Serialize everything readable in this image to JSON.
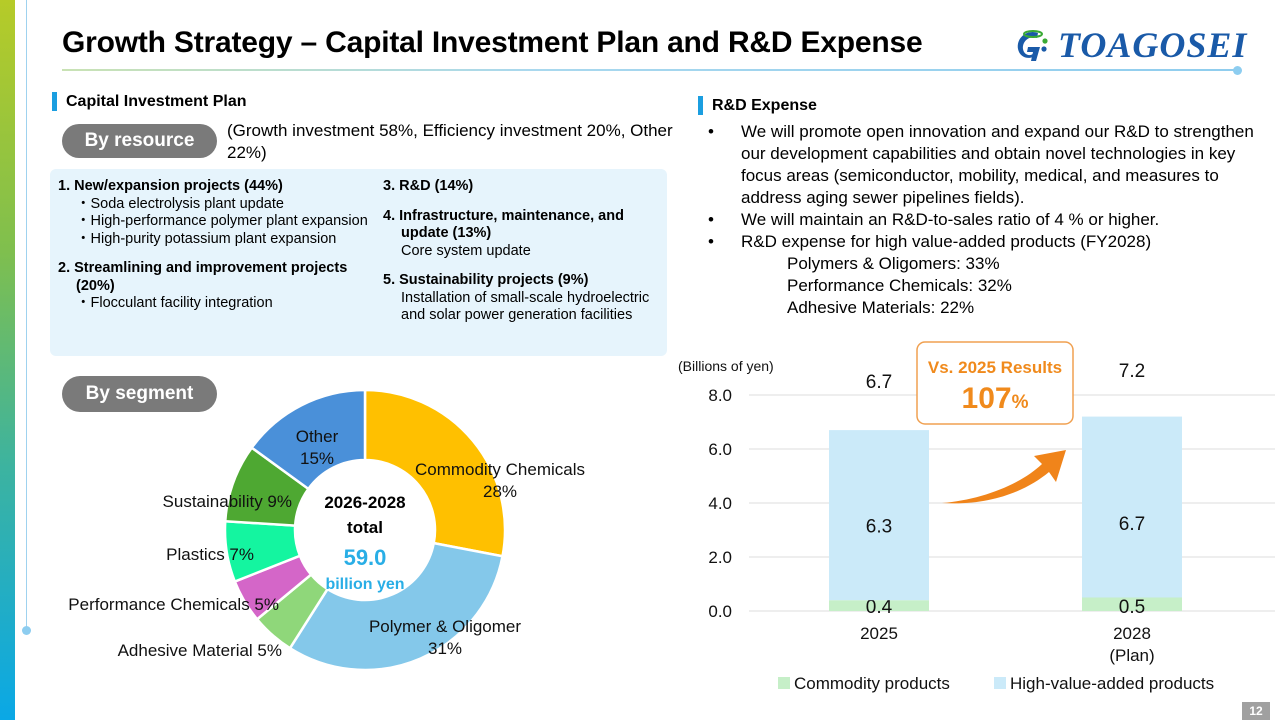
{
  "header": {
    "title": "Growth Strategy – Capital Investment Plan and R&D Expense",
    "logo_text": "TOAGOSEI"
  },
  "capital": {
    "section_title": "Capital Investment Plan",
    "by_resource_label": "By resource",
    "resource_note": "(Growth investment 58%, Efficiency investment 20%, Other 22%)",
    "left_items": [
      {
        "heading": "1.  New/expansion projects (44%)",
        "lines": [
          "・Soda electrolysis plant update",
          "・High-performance polymer plant expansion",
          "・High-purity potassium plant expansion"
        ]
      },
      {
        "heading": "2.  Streamlining and improvement projects (20%)",
        "lines": [
          "・Flocculant facility integration"
        ]
      }
    ],
    "right_items": [
      {
        "heading": "3.  R&D (14%)",
        "lines": []
      },
      {
        "heading": "4.  Infrastructure, maintenance, and update (13%)",
        "lines": [
          "Core system update"
        ]
      },
      {
        "heading": "5. Sustainability projects (9%)",
        "lines": [
          "Installation of small-scale hydroelectric and solar power generation facilities"
        ]
      }
    ],
    "by_segment_label": "By segment"
  },
  "rd": {
    "section_title": "R&D Expense",
    "bullets": [
      "We will promote open innovation and expand our R&D to strengthen our development capabilities and obtain novel technologies in key focus areas (semiconductor, mobility, medical, and measures to address aging sewer pipelines fields).",
      "We will maintain an R&D-to-sales ratio of 4 % or higher.",
      "R&D expense for high value-added products (FY2028)"
    ],
    "sub_items": [
      "Polymers & Oligomers: 33%",
      "Performance Chemicals: 32%",
      "Adhesive Materials: 22%"
    ],
    "bullet_char": "•"
  },
  "page_number": "12",
  "chart_data": [
    {
      "type": "pie",
      "variant": "donut",
      "title": "",
      "center_text": {
        "line1": "2026-2028",
        "line2": "total",
        "value": "59.0",
        "unit": "billion yen"
      },
      "slices": [
        {
          "label": "Commodity Chemicals",
          "value": 28,
          "display": "28%",
          "color": "#ffc000"
        },
        {
          "label": "Polymer & Oligomer",
          "value": 31,
          "display": "31%",
          "color": "#84c8ea"
        },
        {
          "label": "Adhesive Material",
          "value": 5,
          "display": "5%",
          "color": "#8fd77a"
        },
        {
          "label": "Performance Chemicals",
          "value": 5,
          "display": "5%",
          "color": "#d466c8"
        },
        {
          "label": "Plastics",
          "value": 7,
          "display": "7%",
          "color": "#14f5a0"
        },
        {
          "label": "Sustainability",
          "value": 9,
          "display": "9%",
          "color": "#4ea832"
        },
        {
          "label": "Other",
          "value": 15,
          "display": "15%",
          "color": "#4a90d9"
        }
      ]
    },
    {
      "type": "bar",
      "stacked": true,
      "title": "",
      "ylabel": "(Billions of yen)",
      "ylim": [
        0,
        8
      ],
      "yticks": [
        "0.0",
        "2.0",
        "4.0",
        "6.0",
        "8.0"
      ],
      "categories": [
        "2025",
        "2028\n(Plan)"
      ],
      "category_lines": [
        [
          "2025"
        ],
        [
          "2028",
          "(Plan)"
        ]
      ],
      "series": [
        {
          "name": "Commodity products",
          "values": [
            0.4,
            0.5
          ],
          "color": "#c6efc8"
        },
        {
          "name": "High-value-added products",
          "values": [
            6.3,
            6.7
          ],
          "color": "#cbeaf9"
        }
      ],
      "totals": [
        6.7,
        7.2
      ],
      "grid": true,
      "legend": "bottom",
      "annotation": {
        "line1": "Vs. 2025 Results",
        "value": "107",
        "unit": "%",
        "color": "#f08a1c"
      }
    }
  ]
}
